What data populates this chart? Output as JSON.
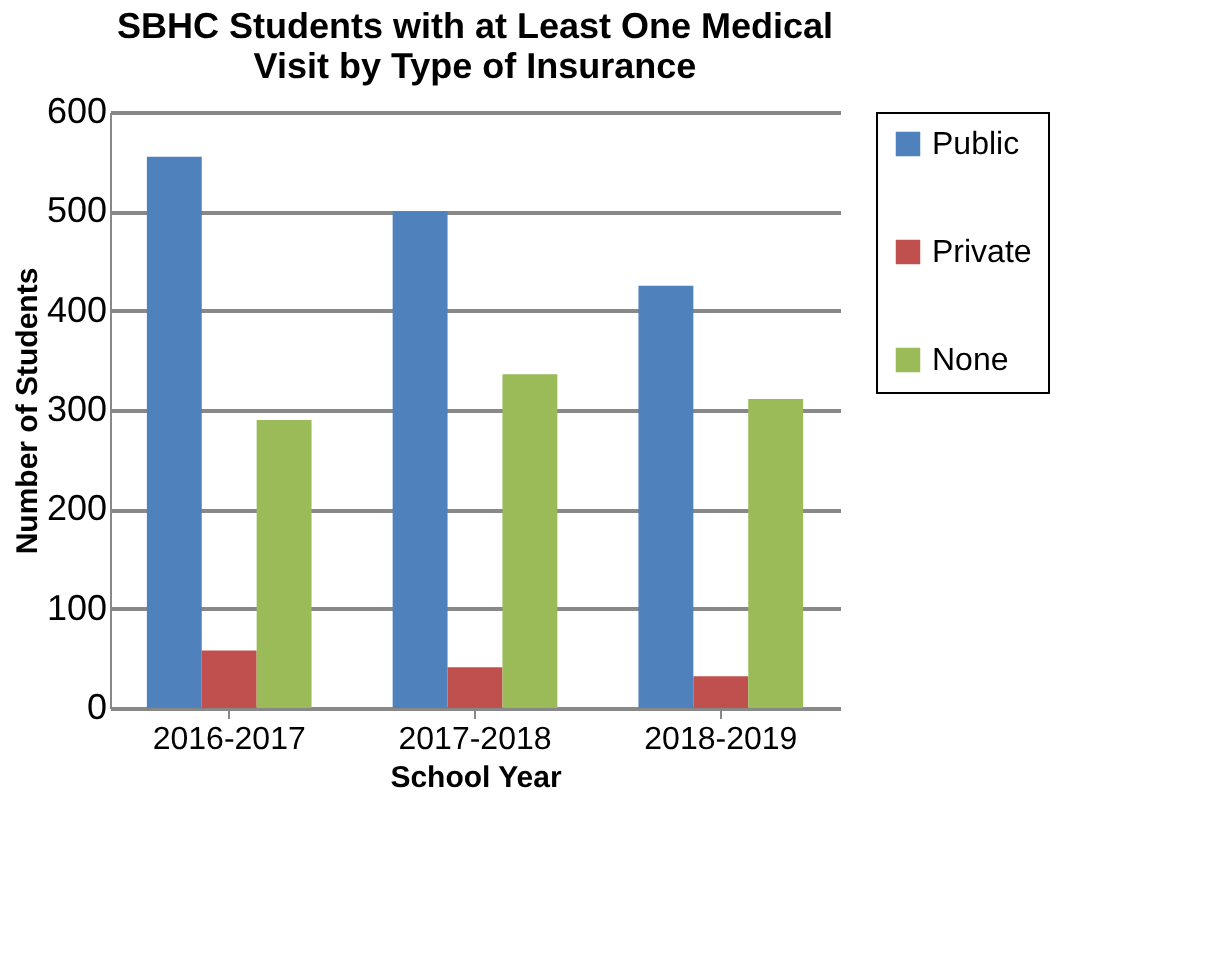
{
  "chart_data": {
    "type": "bar",
    "title": [
      "SBHC Students with at Least One Medical",
      "Visit by Type of Insurance"
    ],
    "xlabel": "School Year",
    "ylabel": "Number of Students",
    "categories": [
      "2016-2017",
      "2017-2018",
      "2018-2019"
    ],
    "series": [
      {
        "name": "Public",
        "color": "#4f81bd",
        "values": [
          555,
          500,
          425
        ]
      },
      {
        "name": "Private",
        "color": "#c0504d",
        "values": [
          58,
          41,
          32
        ]
      },
      {
        "name": "None",
        "color": "#9bbb59",
        "values": [
          290,
          336,
          311
        ]
      }
    ],
    "ylim": [
      0,
      600
    ],
    "yticks": [
      0,
      100,
      200,
      300,
      400,
      500,
      600
    ],
    "grid": "y",
    "legend": "right"
  }
}
